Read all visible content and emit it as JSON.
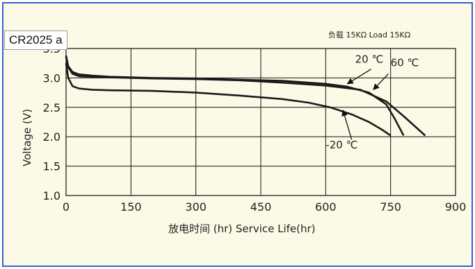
{
  "tag_label": "CR2025 a",
  "chart_data": {
    "type": "line",
    "title": "",
    "load_label": "负载 15KΩ  Load 15KΩ",
    "xlabel": "放电时间 (hr) Service Life(hr)",
    "ylabel": "Voltage (V)",
    "xlim": [
      0,
      900
    ],
    "ylim": [
      1.0,
      3.5
    ],
    "x_ticks": [
      "0",
      "150",
      "300",
      "450",
      "600",
      "750",
      "900"
    ],
    "y_ticks": [
      "1.0",
      "1.5",
      "2.0",
      "2.5",
      "3.0",
      "3.5"
    ],
    "grid": true,
    "series": [
      {
        "name": "20 ℃",
        "x": [
          0,
          5,
          15,
          30,
          60,
          100,
          200,
          300,
          400,
          500,
          600,
          650,
          700,
          740,
          760,
          780
        ],
        "y": [
          3.38,
          3.2,
          3.1,
          3.06,
          3.04,
          3.02,
          3.0,
          2.99,
          2.97,
          2.95,
          2.9,
          2.85,
          2.75,
          2.55,
          2.3,
          2.02
        ]
      },
      {
        "name": "60 ℃",
        "x": [
          0,
          5,
          15,
          30,
          60,
          100,
          200,
          300,
          400,
          500,
          600,
          680,
          740,
          780,
          830
        ],
        "y": [
          3.36,
          3.18,
          3.07,
          3.03,
          3.02,
          3.01,
          2.99,
          2.98,
          2.96,
          2.92,
          2.87,
          2.8,
          2.6,
          2.35,
          2.02
        ]
      },
      {
        "name": "-20 ℃",
        "x": [
          0,
          5,
          15,
          30,
          60,
          100,
          200,
          300,
          400,
          500,
          560,
          610,
          660,
          700,
          730,
          750
        ],
        "y": [
          3.25,
          3.0,
          2.86,
          2.82,
          2.8,
          2.79,
          2.78,
          2.75,
          2.7,
          2.64,
          2.58,
          2.5,
          2.38,
          2.25,
          2.12,
          2.02
        ]
      }
    ],
    "annotations": [
      "20 ℃",
      "60 ℃",
      "-20 ℃"
    ]
  }
}
